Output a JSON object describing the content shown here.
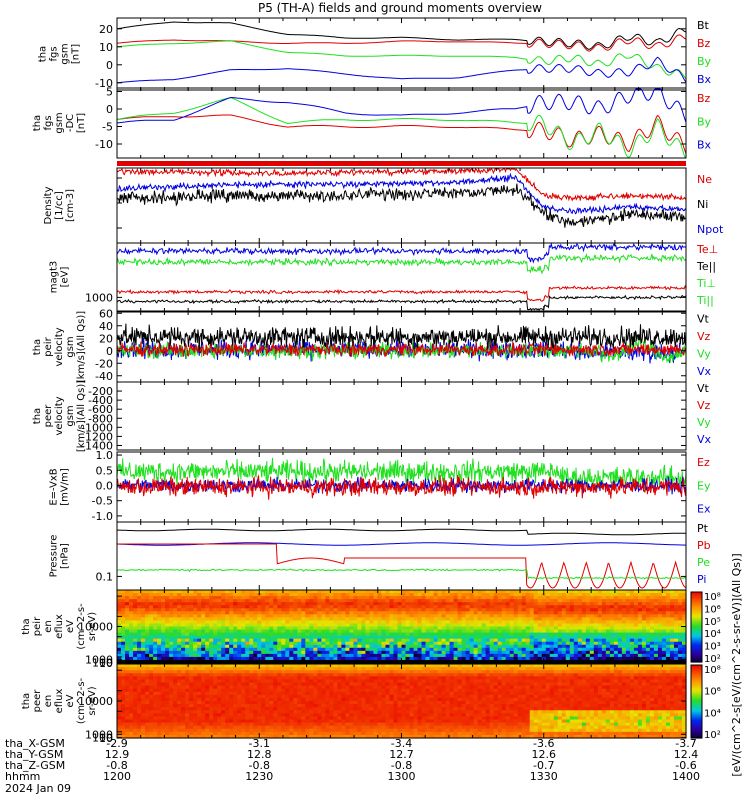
{
  "title": "P5 (TH-A) fields and ground moments overview",
  "colors": {
    "black": "#000000",
    "red": "#dd0000",
    "green": "#22dd22",
    "blue": "#0000dd",
    "trace_red": "#e00000",
    "trace_green": "#20e020",
    "trace_blue": "#0000e0"
  },
  "chart_data": [
    {
      "type": "line",
      "id": "fgs_full",
      "ylabel_lines": [
        "tha",
        "fgs",
        "gsm",
        "[nT]"
      ],
      "ylim": [
        -14,
        26
      ],
      "yticks": [
        "20",
        "10",
        "0",
        "-10"
      ],
      "ytick_values": [
        20,
        10,
        0,
        -10
      ],
      "series": [
        {
          "name": "Bt",
          "color": "black",
          "x": [
            0,
            0.1,
            0.2,
            0.3,
            0.4,
            0.5,
            0.6,
            0.7,
            0.75,
            0.8,
            0.85,
            0.9,
            0.95,
            1.0
          ],
          "y": [
            20,
            24,
            23,
            17,
            15,
            15,
            14,
            14,
            13,
            12,
            10,
            16,
            12,
            20
          ]
        },
        {
          "name": "Bz",
          "color": "red",
          "x": [
            0,
            0.1,
            0.2,
            0.3,
            0.4,
            0.5,
            0.6,
            0.7,
            0.75,
            0.8,
            0.85,
            0.9,
            0.95,
            1.0
          ],
          "y": [
            12,
            14,
            13,
            12,
            12,
            13,
            13,
            12,
            12,
            11,
            9,
            14,
            10,
            16
          ]
        },
        {
          "name": "By",
          "color": "green",
          "x": [
            0,
            0.1,
            0.2,
            0.3,
            0.4,
            0.5,
            0.6,
            0.7,
            0.75,
            0.8,
            0.85,
            0.9,
            0.95,
            1.0
          ],
          "y": [
            10,
            12,
            13,
            7,
            5,
            5,
            5,
            4,
            2,
            4,
            0,
            6,
            -2,
            -6
          ]
        },
        {
          "name": "Bx",
          "color": "blue",
          "x": [
            0,
            0.1,
            0.2,
            0.3,
            0.4,
            0.5,
            0.6,
            0.7,
            0.75,
            0.8,
            0.85,
            0.9,
            0.95,
            1.0
          ],
          "y": [
            -10,
            -8,
            -3,
            -2,
            -5,
            -8,
            -7,
            -3,
            -2,
            -2,
            -5,
            -4,
            2,
            -8
          ]
        }
      ]
    },
    {
      "type": "line",
      "id": "fgs_dc",
      "ylabel_lines": [
        "tha",
        "fgs",
        "gsm",
        "-DC",
        "[nT]"
      ],
      "ylim": [
        -14,
        6
      ],
      "yticks": [
        "5",
        "0",
        "-5",
        "-10"
      ],
      "ytick_values": [
        5,
        0,
        -5,
        -10
      ],
      "series": [
        {
          "name": "Bz",
          "color": "red",
          "x": [
            0,
            0.1,
            0.2,
            0.3,
            0.4,
            0.5,
            0.6,
            0.7,
            0.75,
            0.8,
            0.85,
            0.9,
            0.95,
            1.0
          ],
          "y": [
            -3,
            -2,
            -2,
            -5,
            -5,
            -5,
            -5,
            -6,
            -6,
            -9,
            -7,
            -10,
            -4,
            -11
          ]
        },
        {
          "name": "By",
          "color": "green",
          "x": [
            0,
            0.1,
            0.2,
            0.3,
            0.4,
            0.5,
            0.6,
            0.7,
            0.75,
            0.8,
            0.85,
            0.9,
            0.95,
            1.0
          ],
          "y": [
            -3,
            -1,
            3,
            -4,
            -3,
            -3,
            -3,
            -4,
            -4,
            -10,
            -6,
            -12,
            -5,
            -13
          ]
        },
        {
          "name": "Bx",
          "color": "blue",
          "x": [
            0,
            0.1,
            0.2,
            0.3,
            0.4,
            0.5,
            0.6,
            0.7,
            0.75,
            0.8,
            0.85,
            0.9,
            0.95,
            1.0
          ],
          "y": [
            -4,
            -3,
            3,
            2,
            -1,
            -2,
            -1,
            0,
            2,
            2,
            0,
            4,
            5,
            -2
          ]
        }
      ]
    },
    {
      "type": "line",
      "id": "density",
      "ylabel_lines": [
        "Density",
        "[1/cc]",
        "[cm-3]"
      ],
      "log": true,
      "series": [
        {
          "name": "Ne",
          "color": "red",
          "x": [
            0,
            0.2,
            0.4,
            0.6,
            0.7,
            0.75,
            0.8,
            0.9,
            1.0
          ],
          "y": [
            0.85,
            0.8,
            0.82,
            0.85,
            0.9,
            0.3,
            0.25,
            0.3,
            0.25
          ]
        },
        {
          "name": "Ni",
          "color": "black",
          "x": [
            0,
            0.2,
            0.4,
            0.6,
            0.7,
            0.75,
            0.8,
            0.9,
            1.0
          ],
          "y": [
            0.25,
            0.3,
            0.3,
            0.35,
            0.45,
            -0.1,
            -0.3,
            -0.1,
            -0.15
          ]
        },
        {
          "name": "Npot",
          "color": "blue",
          "x": [
            0,
            0.2,
            0.4,
            0.6,
            0.7,
            0.75,
            0.8,
            0.9,
            1.0
          ],
          "y": [
            0.45,
            0.55,
            0.55,
            0.6,
            0.7,
            0.05,
            -0.05,
            0.05,
            0.0
          ]
        }
      ]
    },
    {
      "type": "line",
      "id": "temperature",
      "ylabel_lines": [
        "magt3",
        "[eV]"
      ],
      "yticks": [
        "1000"
      ],
      "series": [
        {
          "name": "Te⊥",
          "color": "red",
          "x": [
            0,
            1
          ],
          "y": [
            0,
            0
          ]
        },
        {
          "name": "Te||",
          "color": "black",
          "x": [
            0,
            1
          ],
          "y": [
            0,
            0
          ]
        },
        {
          "name": "Ti⊥",
          "color": "green",
          "x": [
            0,
            1
          ],
          "y": [
            0,
            0
          ]
        },
        {
          "name": "Ti||",
          "color": "green",
          "x": [
            0,
            1
          ],
          "y": [
            0,
            0
          ]
        }
      ]
    },
    {
      "type": "line",
      "id": "peir_velocity",
      "ylabel_lines": [
        "tha",
        "peir",
        "velocity",
        "gsm",
        "[km/s](All Qs)]"
      ],
      "ylim": [
        -50,
        62
      ],
      "yticks": [
        "60",
        "40",
        "20",
        "0",
        "-20",
        "-40"
      ],
      "ytick_values": [
        60,
        40,
        20,
        0,
        -20,
        -40
      ],
      "series": [
        {
          "name": "Vt",
          "color": "black"
        },
        {
          "name": "Vz",
          "color": "red"
        },
        {
          "name": "Vy",
          "color": "green"
        },
        {
          "name": "Vx",
          "color": "blue"
        }
      ]
    },
    {
      "type": "line",
      "id": "peer_velocity",
      "ylabel_lines": [
        "tha",
        "peer",
        "velocity",
        "gsm",
        "[km/s](All Qs)]"
      ],
      "ylim": [
        -1500,
        0
      ],
      "yticks": [
        "-200",
        "-400",
        "-600",
        "-800",
        "-1000",
        "-1200",
        "-1400"
      ],
      "ytick_values": [
        -200,
        -400,
        -600,
        -800,
        -1000,
        -1200,
        -1400
      ],
      "series": [
        {
          "name": "Vt",
          "color": "black"
        },
        {
          "name": "Vz",
          "color": "red"
        },
        {
          "name": "Vy",
          "color": "green"
        },
        {
          "name": "Vx",
          "color": "blue"
        }
      ]
    },
    {
      "type": "line",
      "id": "efield",
      "ylabel_lines": [
        "E=-VxB",
        "[mV/m]"
      ],
      "ylim": [
        -1.2,
        1.1
      ],
      "yticks": [
        "1.0",
        "0.5",
        "0.0",
        "-0.5",
        "-1.0"
      ],
      "ytick_values": [
        1.0,
        0.5,
        0.0,
        -0.5,
        -1.0
      ],
      "series": [
        {
          "name": "Ez",
          "color": "red"
        },
        {
          "name": "Ey",
          "color": "green"
        },
        {
          "name": "Ex",
          "color": "blue"
        }
      ]
    },
    {
      "type": "line",
      "id": "pressure",
      "ylabel_lines": [
        "Pressure",
        "[nPa]"
      ],
      "log": true,
      "yticks": [
        "0.1"
      ],
      "series": [
        {
          "name": "Pt",
          "color": "black"
        },
        {
          "name": "Pb",
          "color": "red"
        },
        {
          "name": "Pe",
          "color": "green"
        },
        {
          "name": "Pi",
          "color": "blue"
        }
      ]
    },
    {
      "type": "heatmap",
      "id": "peir_eflux",
      "ylabel_lines": [
        "tha",
        "peir",
        "en",
        "eflux",
        "eV",
        "(cm^2-s-",
        "sr-eV)"
      ],
      "yticks": [
        "10000",
        "1000",
        "100",
        "10"
      ],
      "ytick_values": [
        10000,
        1000,
        100,
        10
      ],
      "ylim": [
        5,
        20000
      ]
    },
    {
      "type": "heatmap",
      "id": "peer_eflux",
      "ylabel_lines": [
        "tha",
        "peer",
        "en",
        "eflux",
        "eV",
        "(cm^2-s-",
        "sr-eV)"
      ],
      "yticks": [
        "10000",
        "1000",
        "100",
        "10"
      ],
      "ytick_values": [
        10000,
        1000,
        100,
        10
      ],
      "ylim": [
        5,
        20000
      ]
    }
  ],
  "colorbar": {
    "label": "[eV/(cm^2-s[eV/(cm^2-s-sr-eV)](All Qs)]",
    "upper_ticks": [
      "10⁸",
      "10⁶",
      "10⁵",
      "10⁴",
      "10³",
      "10²"
    ],
    "lower_ticks": [
      "10⁸",
      "10⁶",
      "10⁴",
      "10²"
    ]
  },
  "time_axis": {
    "row_labels": [
      "tha_X-GSM",
      "tha_Y-GSM",
      "tha_Z-GSM",
      "hhmm",
      "2024 Jan 09"
    ],
    "columns": [
      {
        "x": "-2.9",
        "y": "12.9",
        "z": "-0.8",
        "hhmm": "1200"
      },
      {
        "x": "-3.1",
        "y": "12.8",
        "z": "-0.8",
        "hhmm": "1230"
      },
      {
        "x": "-3.4",
        "y": "12.7",
        "z": "-0.8",
        "hhmm": "1300"
      },
      {
        "x": "-3.6",
        "y": "12.6",
        "z": "-0.7",
        "hhmm": "1330"
      },
      {
        "x": "-3.7",
        "y": "12.4",
        "z": "-0.6",
        "hhmm": "1400"
      }
    ]
  }
}
